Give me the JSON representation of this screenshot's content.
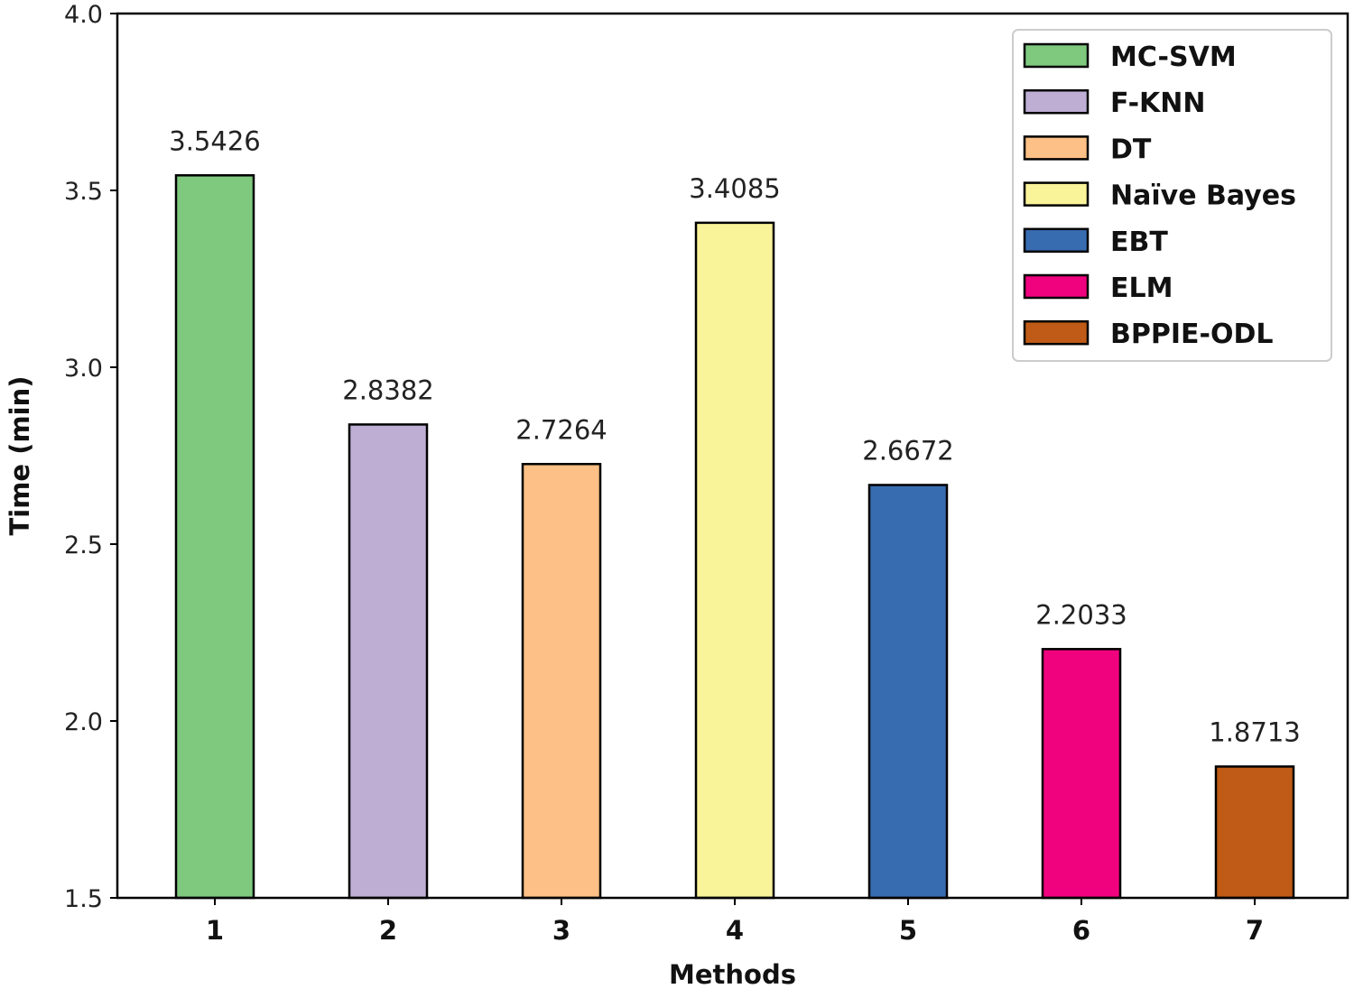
{
  "chart_data": {
    "type": "bar",
    "title": "",
    "xlabel": "Methods",
    "ylabel": "Time (min)",
    "categories": [
      "1",
      "2",
      "3",
      "4",
      "5",
      "6",
      "7"
    ],
    "values": [
      3.5426,
      2.8382,
      2.7264,
      3.4085,
      2.6672,
      2.2033,
      1.8713
    ],
    "data_labels": [
      "3.5426",
      "2.8382",
      "2.7264",
      "3.4085",
      "2.6672",
      "2.2033",
      "1.8713"
    ],
    "series_names": [
      "MC-SVM",
      "F-KNN",
      "DT",
      "Naïve Bayes",
      "EBT",
      "ELM",
      "BPPIE-ODL"
    ],
    "colors": [
      "#7fc97f",
      "#beaed4",
      "#fdc086",
      "#f9f39a",
      "#386cb0",
      "#f0027f",
      "#bf5b17"
    ],
    "ylim": [
      1.5,
      4.0
    ],
    "yticks": [
      "1.5",
      "2.0",
      "2.5",
      "3.0",
      "3.5",
      "4.0"
    ],
    "grid": false,
    "legend_position": "top-right"
  }
}
